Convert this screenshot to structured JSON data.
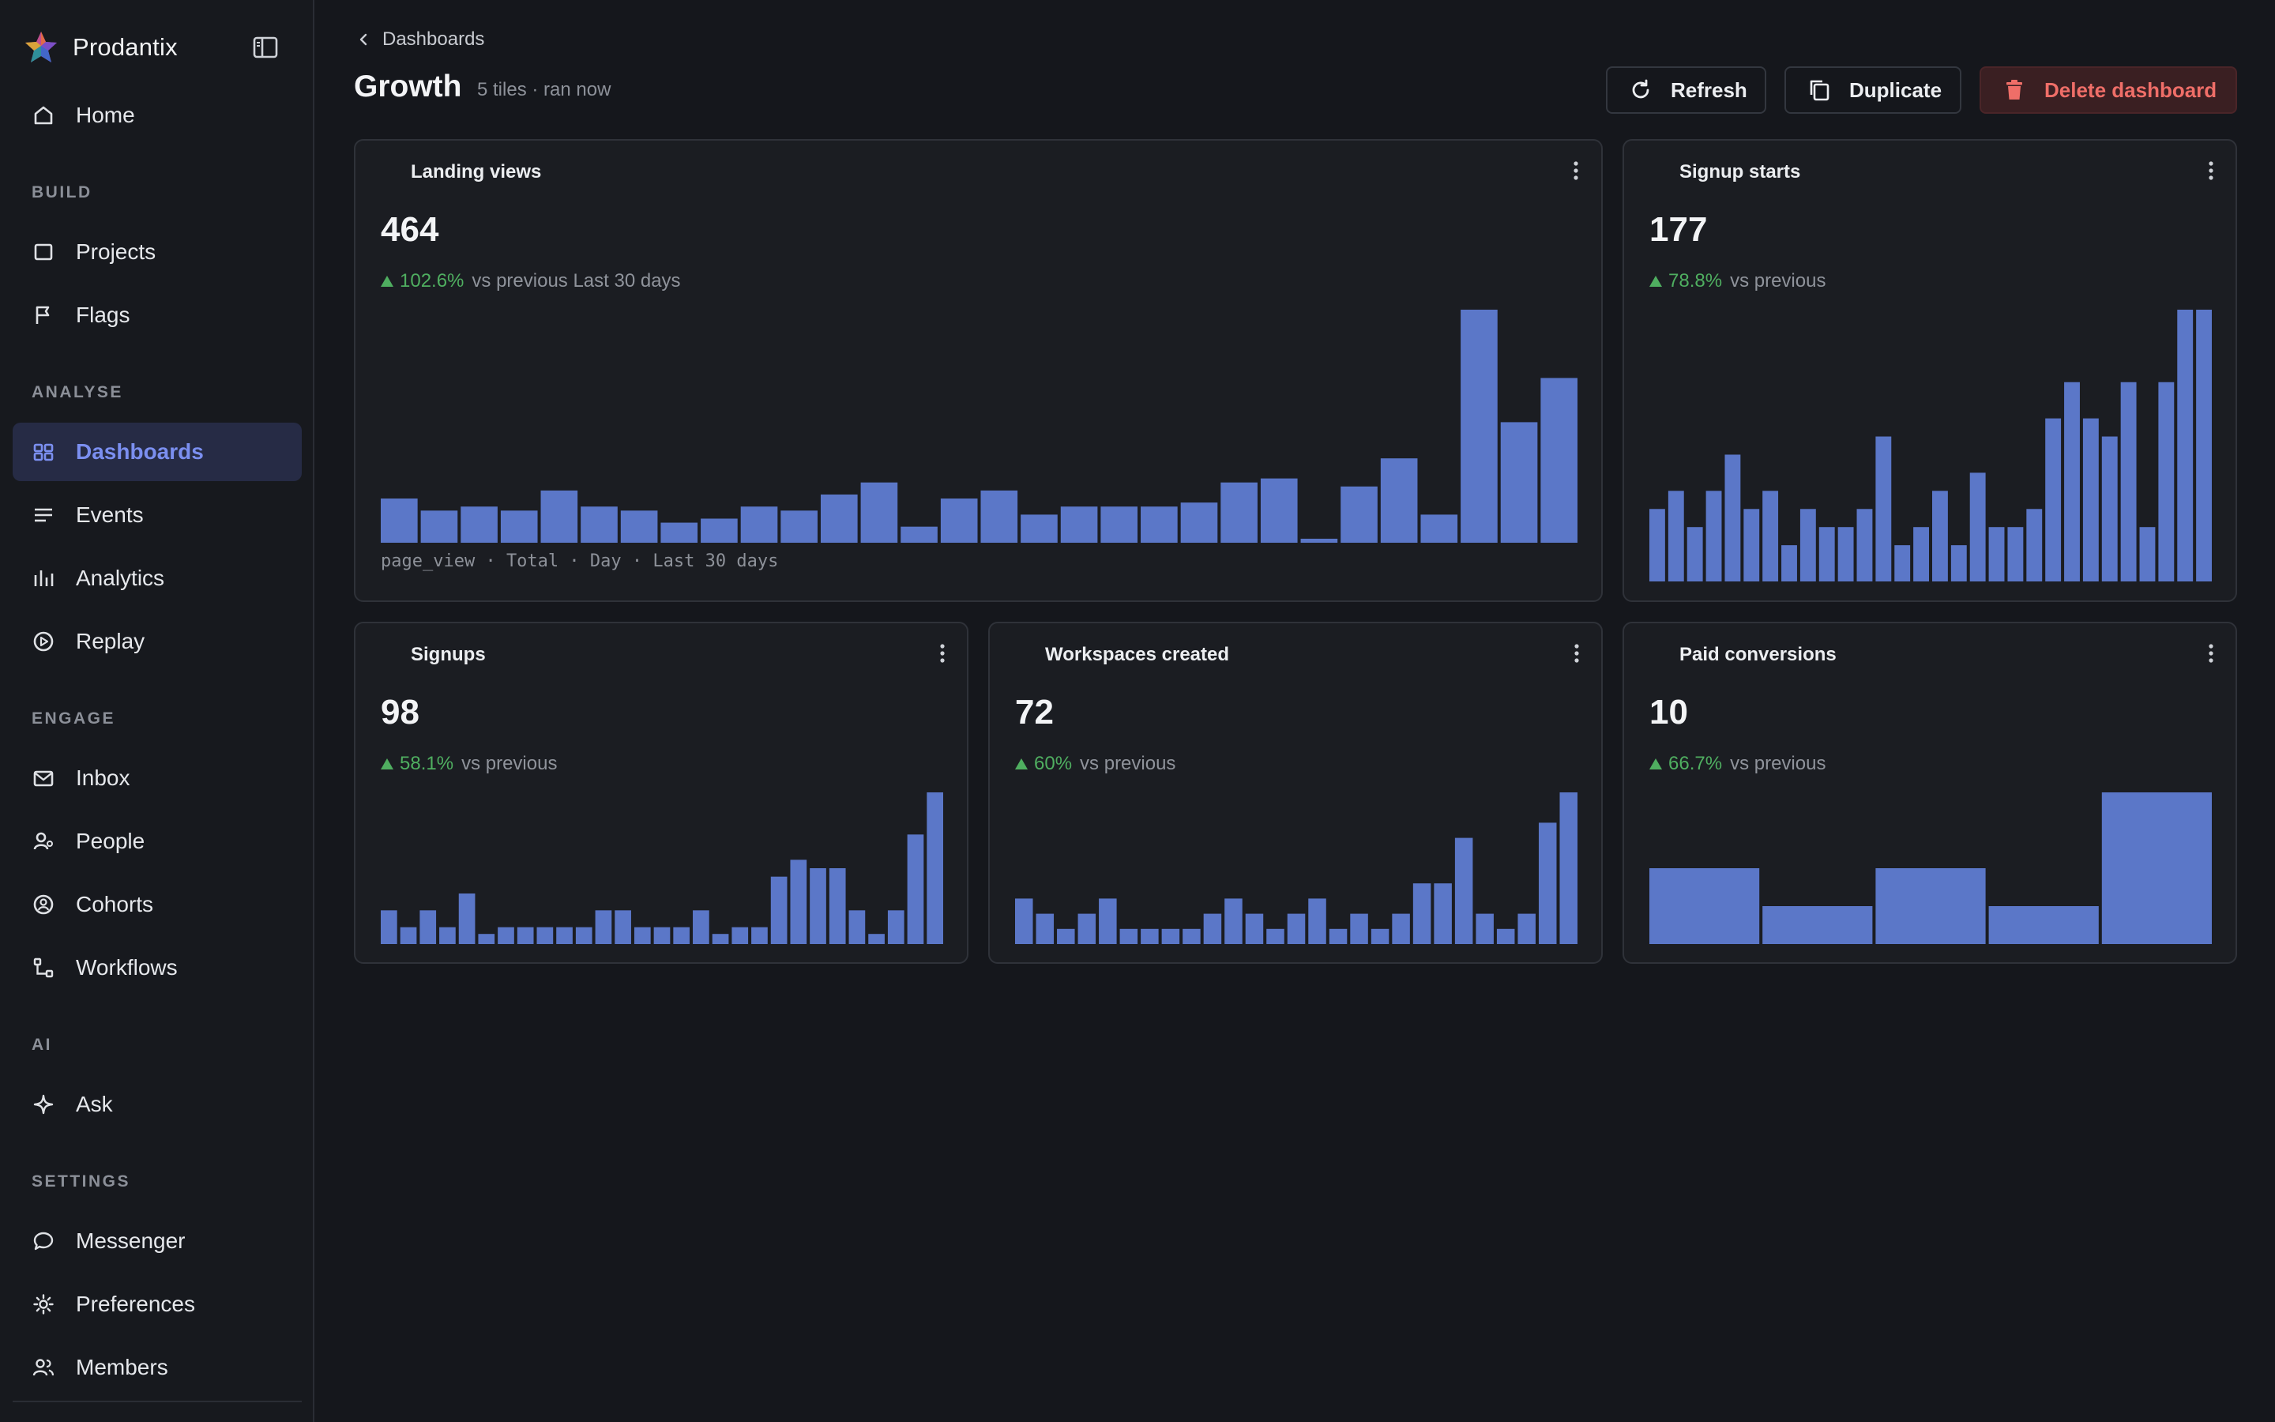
{
  "app": {
    "name": "Prodantix"
  },
  "sidebar": {
    "items_top": [
      {
        "label": "Home",
        "icon": "home-icon"
      }
    ],
    "sections": [
      {
        "heading": "BUILD",
        "items": [
          {
            "label": "Projects",
            "icon": "square-icon"
          },
          {
            "label": "Flags",
            "icon": "flag-icon"
          }
        ]
      },
      {
        "heading": "ANALYSE",
        "items": [
          {
            "label": "Dashboards",
            "icon": "grid-icon",
            "active": true
          },
          {
            "label": "Events",
            "icon": "list-icon"
          },
          {
            "label": "Analytics",
            "icon": "bar-chart-icon"
          },
          {
            "label": "Replay",
            "icon": "play-circle-icon"
          }
        ]
      },
      {
        "heading": "ENGAGE",
        "items": [
          {
            "label": "Inbox",
            "icon": "mail-icon"
          },
          {
            "label": "People",
            "icon": "person-icon"
          },
          {
            "label": "Cohorts",
            "icon": "cohort-icon"
          },
          {
            "label": "Workflows",
            "icon": "workflow-icon"
          }
        ]
      },
      {
        "heading": "AI",
        "items": [
          {
            "label": "Ask",
            "icon": "sparkle-icon"
          }
        ]
      },
      {
        "heading": "SETTINGS",
        "items": [
          {
            "label": "Messenger",
            "icon": "chat-bubble-icon"
          },
          {
            "label": "Preferences",
            "icon": "gear-icon"
          },
          {
            "label": "Members",
            "icon": "users-icon"
          }
        ]
      }
    ]
  },
  "header": {
    "breadcrumb": "Dashboards",
    "title": "Growth",
    "subtitle": "5 tiles · ran now",
    "buttons": {
      "refresh": "Refresh",
      "duplicate": "Duplicate",
      "delete": "Delete dashboard"
    }
  },
  "colors": {
    "bar": "#5b77c8",
    "accent": "#7b8ff0",
    "positive": "#4fae60",
    "danger": "#ef6e68"
  },
  "tiles": [
    {
      "title": "Landing views",
      "value": "464",
      "delta": "102.6%",
      "delta_rest": "vs previous Last 30 days",
      "footer": "page_view · Total · Day · Last 30 days"
    },
    {
      "title": "Signup starts",
      "value": "177",
      "delta": "78.8%",
      "delta_rest": "vs previous"
    },
    {
      "title": "Signups",
      "value": "98",
      "delta": "58.1%",
      "delta_rest": "vs previous"
    },
    {
      "title": "Workspaces created",
      "value": "72",
      "delta": "60%",
      "delta_rest": "vs previous"
    },
    {
      "title": "Paid conversions",
      "value": "10",
      "delta": "66.7%",
      "delta_rest": "vs previous"
    }
  ],
  "chart_data": [
    {
      "type": "bar",
      "title": "Landing views",
      "values": [
        11,
        8,
        9,
        8,
        13,
        9,
        8,
        5,
        6,
        9,
        8,
        12,
        15,
        4,
        11,
        13,
        7,
        9,
        9,
        9,
        10,
        15,
        16,
        1,
        14,
        21,
        7,
        58,
        30,
        41
      ],
      "ylim": [
        0,
        58
      ]
    },
    {
      "type": "bar",
      "title": "Signup starts",
      "values": [
        4,
        5,
        3,
        5,
        7,
        4,
        5,
        2,
        4,
        3,
        3,
        4,
        8,
        2,
        3,
        5,
        2,
        6,
        3,
        3,
        4,
        9,
        11,
        9,
        8,
        11,
        3,
        11,
        15,
        15
      ],
      "ylim": [
        0,
        15
      ]
    },
    {
      "type": "bar",
      "title": "Signups",
      "values": [
        2,
        1,
        2,
        1,
        3,
        0.6,
        1,
        1,
        1,
        1,
        1,
        2,
        2,
        1,
        1,
        1,
        2,
        0.6,
        1,
        1,
        4,
        5,
        4.5,
        4.5,
        2,
        0.6,
        2,
        6.5,
        9
      ],
      "ylim": [
        0,
        9
      ]
    },
    {
      "type": "bar",
      "title": "Workspaces created",
      "values": [
        3,
        2,
        1,
        2,
        3,
        1,
        1,
        1,
        1,
        2,
        3,
        2,
        1,
        2,
        3,
        1,
        2,
        1,
        2,
        4,
        4,
        7,
        2,
        1,
        2,
        8,
        10
      ],
      "ylim": [
        0,
        10
      ]
    },
    {
      "type": "bar",
      "title": "Paid conversions",
      "values": [
        2,
        1,
        2,
        1,
        4
      ],
      "ylim": [
        0,
        4
      ]
    }
  ]
}
